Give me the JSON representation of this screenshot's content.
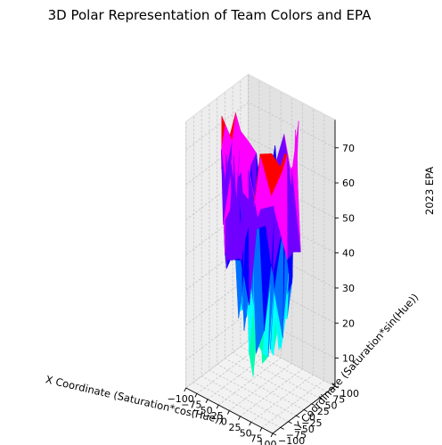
{
  "chart_data": {
    "type": "surface3d",
    "title": "3D Polar Representation of Team Colors and EPA",
    "xlabel": "X Coordinate (Saturation*cos(Hue))",
    "ylabel": "Y Coordinate (Saturation*sin(Hue))",
    "zlabel": "2023 EPA",
    "xlim": [
      -100,
      100
    ],
    "ylim": [
      -100,
      100
    ],
    "zlim": [
      2,
      78
    ],
    "xticks": [
      -100,
      -75,
      -50,
      -25,
      0,
      25,
      50,
      75,
      100
    ],
    "yticks": [
      -100,
      -75,
      -50,
      -25,
      0,
      25,
      50,
      75,
      100
    ],
    "zticks": [
      10,
      20,
      30,
      40,
      50,
      60,
      70
    ],
    "xtick_labels": [
      "−100",
      "−75",
      "−50",
      "−25",
      "0",
      "25",
      "50",
      "75",
      "100"
    ],
    "ytick_labels": [
      "−100",
      "−75",
      "−50",
      "−25",
      "0",
      "25",
      "50",
      "75",
      "100"
    ],
    "ztick_labels": [
      "10",
      "20",
      "30",
      "40",
      "50",
      "60",
      "70"
    ],
    "grid": true,
    "colormap": "hsv",
    "surface_extent": {
      "radius_max": 75,
      "z_min": 3,
      "z_max": 76
    },
    "colors": [
      "#00ff22",
      "#00ffb0",
      "#00ffff",
      "#0070ff",
      "#0000ff",
      "#7000ff",
      "#ff00ff",
      "#ff0000"
    ]
  }
}
